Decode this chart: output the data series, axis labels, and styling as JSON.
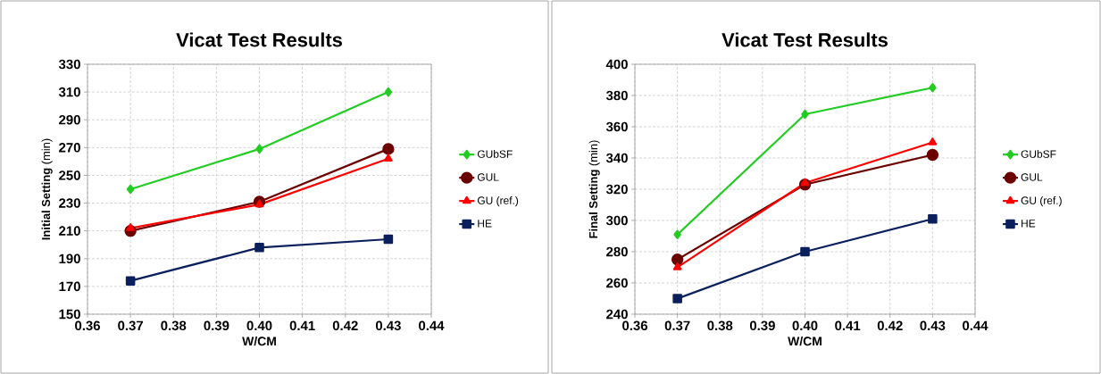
{
  "chart_data": [
    {
      "type": "line",
      "title": "Vicat Test Results",
      "xlabel": "W/CM",
      "ylabel": "**Initial Setting** (min)",
      "x": [
        0.37,
        0.4,
        0.43
      ],
      "series": [
        {
          "name": "GUbSF",
          "color": "#22cc22",
          "marker": "diamond",
          "values": [
            240,
            269,
            310
          ]
        },
        {
          "name": "GUL",
          "color": "#6b0000",
          "marker": "circle",
          "values": [
            210,
            231,
            269
          ]
        },
        {
          "name": "GU (ref.)",
          "color": "#ff0000",
          "marker": "triangle",
          "values": [
            212,
            229,
            262
          ]
        },
        {
          "name": "HE",
          "color": "#0a1f5c",
          "marker": "square",
          "values": [
            174,
            198,
            204
          ]
        }
      ],
      "xlim": [
        0.36,
        0.44
      ],
      "xticks": [
        0.36,
        0.37,
        0.38,
        0.39,
        {
          "value": 0.4,
          "label": "0.40"
        },
        0.41,
        0.42,
        0.43,
        0.44
      ],
      "ylim": [
        150,
        330
      ],
      "yticks": [
        150,
        170,
        190,
        210,
        230,
        250,
        270,
        290,
        310,
        330
      ],
      "grid": true,
      "legend": "right",
      "line_style": "solid"
    },
    {
      "type": "line",
      "title": "Vicat Test Results",
      "xlabel": "W/CM",
      "ylabel": "**Final Setting** (min)",
      "x": [
        0.37,
        0.4,
        0.43
      ],
      "series": [
        {
          "name": "GUbSF",
          "color": "#22cc22",
          "marker": "diamond",
          "values": [
            291,
            368,
            385
          ]
        },
        {
          "name": "GUL",
          "color": "#6b0000",
          "marker": "circle",
          "values": [
            275,
            323,
            342
          ]
        },
        {
          "name": "GU (ref.)",
          "color": "#ff0000",
          "marker": "triangle",
          "values": [
            270,
            324,
            350
          ]
        },
        {
          "name": "HE",
          "color": "#0a1f5c",
          "marker": "square",
          "values": [
            250,
            280,
            301
          ]
        }
      ],
      "xlim": [
        0.36,
        0.44
      ],
      "xticks": [
        0.36,
        0.37,
        0.38,
        0.39,
        {
          "value": 0.4,
          "label": "0.40"
        },
        0.41,
        0.42,
        0.43,
        0.44
      ],
      "ylim": [
        240,
        400
      ],
      "yticks": [
        240,
        260,
        280,
        300,
        320,
        340,
        360,
        380,
        400
      ],
      "grid": true,
      "legend": "right",
      "line_style": "solid"
    }
  ]
}
